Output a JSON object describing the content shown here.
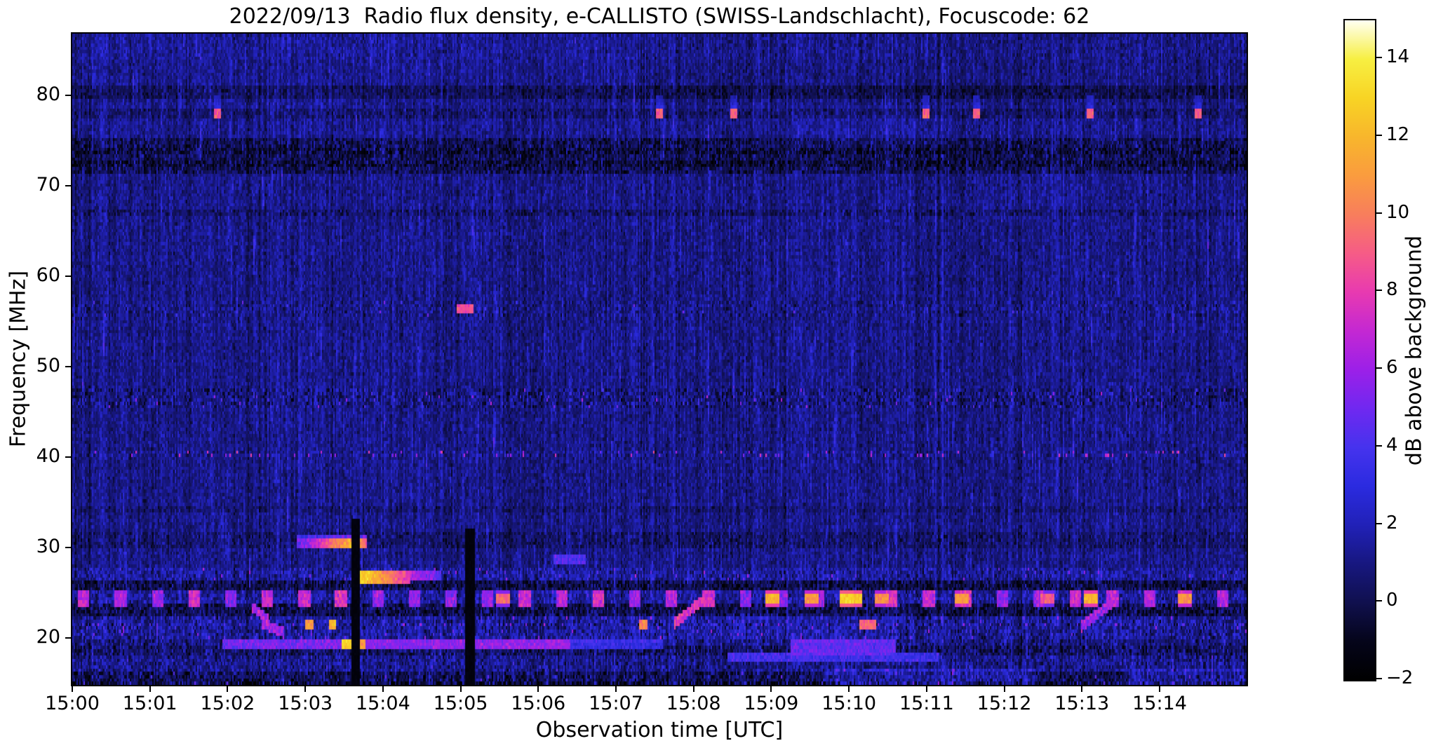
{
  "title": "2022/09/13  Radio flux density, e-CALLISTO (SWISS-Landschlacht), Focuscode: 62",
  "axes": {
    "xlabel": "Observation time [UTC]",
    "ylabel": "Frequency [MHz]",
    "x_tick_labels": [
      "15:00",
      "15:01",
      "15:02",
      "15:03",
      "15:04",
      "15:05",
      "15:06",
      "15:07",
      "15:08",
      "15:09",
      "15:10",
      "15:11",
      "15:12",
      "15:13",
      "15:14"
    ],
    "y_tick_labels": [
      "20",
      "30",
      "40",
      "50",
      "60",
      "70",
      "80"
    ],
    "y_tick_values": [
      20,
      30,
      40,
      50,
      60,
      70,
      80
    ]
  },
  "colorbar": {
    "label": "dB above background",
    "tick_labels": [
      "14",
      "12",
      "10",
      "8",
      "6",
      "4",
      "2",
      "0",
      "−2"
    ],
    "tick_values": [
      14,
      12,
      10,
      8,
      6,
      4,
      2,
      0,
      -2
    ],
    "vmin": -2,
    "vmax": 15
  },
  "chart_data": {
    "type": "heatmap",
    "subtype": "radio-spectrogram",
    "date": "2022/09/13",
    "instrument": "e-CALLISTO (SWISS-Landschlacht)",
    "focuscode": 62,
    "x_axis": {
      "label": "Observation time [UTC]",
      "start": "15:00",
      "end": "15:15",
      "minutes_span": 15.12,
      "tick_interval_min": 1
    },
    "y_axis": {
      "label": "Frequency [MHz]",
      "min": 14.8,
      "max": 86.8
    },
    "value_axis": {
      "label": "dB above background",
      "min": -2,
      "max": 15
    },
    "colormap_stops": [
      {
        "v": -2,
        "c": "#000000"
      },
      {
        "v": -1,
        "c": "#05051a"
      },
      {
        "v": 0,
        "c": "#10104e"
      },
      {
        "v": 1,
        "c": "#171780"
      },
      {
        "v": 2,
        "c": "#2121b8"
      },
      {
        "v": 3,
        "c": "#2b2be0"
      },
      {
        "v": 4,
        "c": "#4633ee"
      },
      {
        "v": 5,
        "c": "#7028f0"
      },
      {
        "v": 6,
        "c": "#9c20e8"
      },
      {
        "v": 7,
        "c": "#c428d2"
      },
      {
        "v": 8,
        "c": "#e83ab0"
      },
      {
        "v": 9,
        "c": "#f65c86"
      },
      {
        "v": 10,
        "c": "#f87e5c"
      },
      {
        "v": 11,
        "c": "#fa9c3e"
      },
      {
        "v": 12,
        "c": "#f8b62c"
      },
      {
        "v": 13,
        "c": "#f8d424"
      },
      {
        "v": 14,
        "c": "#f7ef42"
      },
      {
        "v": 15,
        "c": "#fffff2"
      }
    ],
    "background_level_db": 1.0,
    "noise_sigma_db": 0.55,
    "bands": [
      {
        "f0": 84.0,
        "f1": 86.8,
        "dv": 0.35,
        "var": 1.1
      },
      {
        "f0": 80.9,
        "f1": 84.0,
        "dv": 0.15,
        "var": 1.0
      },
      {
        "f0": 79.6,
        "f1": 80.9,
        "dv": -0.75,
        "var": 1.1
      },
      {
        "f0": 78.4,
        "f1": 79.6,
        "dv": 0.1,
        "var": 1.0
      },
      {
        "f0": 77.5,
        "f1": 78.4,
        "dv": -0.45,
        "var": 1.1
      },
      {
        "f0": 75.2,
        "f1": 77.5,
        "dv": 0.1,
        "var": 1.0
      },
      {
        "f0": 71.2,
        "f1": 75.2,
        "dv": -0.95,
        "var": 1.5
      },
      {
        "f0": 73.5,
        "f1": 74.3,
        "dv": -0.45,
        "var": 1.2
      },
      {
        "f0": 71.9,
        "f1": 72.7,
        "dv": -0.45,
        "var": 1.2
      },
      {
        "f0": 66.5,
        "f1": 67.4,
        "dv": -0.55,
        "var": 1.3
      },
      {
        "f0": 55.5,
        "f1": 57.2,
        "dv": 0.0,
        "var": 1.35,
        "p": 0.004,
        "sv0": 3.5,
        "sv1": 6
      },
      {
        "f0": 45.4,
        "f1": 47.6,
        "dv": -0.15,
        "var": 1.7,
        "p": 0.012,
        "sv0": 4,
        "sv1": 7
      },
      {
        "f0": 39.9,
        "f1": 40.7,
        "dv": 0.15,
        "var": 1.3,
        "p": 0.045,
        "sv0": 5,
        "sv1": 8.5
      },
      {
        "f0": 34.0,
        "f1": 34.6,
        "dv": -0.4,
        "var": 1.1
      },
      {
        "f0": 30.1,
        "f1": 31.6,
        "dv": -0.5,
        "var": 1.2
      },
      {
        "f0": 26.2,
        "f1": 27.9,
        "dv": 0.45,
        "var": 1.6,
        "p": 0.01,
        "sv0": 4,
        "sv1": 7
      },
      {
        "f0": 25.1,
        "f1": 26.2,
        "dv": -1.15,
        "var": 1.7
      },
      {
        "f0": 23.7,
        "f1": 25.1,
        "dv": 0.45,
        "var": 1.5
      },
      {
        "f0": 22.5,
        "f1": 23.7,
        "dv": -1.05,
        "var": 1.6
      },
      {
        "f0": 19.8,
        "f1": 22.5,
        "dv": 0.35,
        "var": 1.7,
        "p": 0.01,
        "sv0": 4,
        "sv1": 6.5
      },
      {
        "f0": 21.15,
        "f1": 21.6,
        "dv": 0.1,
        "var": 1.3,
        "p": 0.03,
        "sv0": 4,
        "sv1": 7
      },
      {
        "f0": 18.95,
        "f1": 19.8,
        "dv": -0.15,
        "var": 1.5
      },
      {
        "f0": 17.95,
        "f1": 18.95,
        "dv": -0.6,
        "var": 1.6
      },
      {
        "f0": 16.4,
        "f1": 17.95,
        "dv": 0.1,
        "var": 1.5
      },
      {
        "f0": 14.8,
        "f1": 16.4,
        "dv": -0.85,
        "var": 1.8,
        "p": 0.006,
        "sv0": 3,
        "sv1": 5
      },
      {
        "f0": 14.8,
        "f1": 15.3,
        "dv": -0.5,
        "var": 1.4
      }
    ],
    "features": [
      {
        "type": "dotline",
        "name": "rfi-78mhz-dots",
        "f": 77.9,
        "dot_df": 0.45,
        "tail_df": 1.9,
        "v": 9,
        "times": [
          1.87,
          7.56,
          8.52,
          11.0,
          11.65,
          13.1,
          14.5
        ]
      },
      {
        "type": "spot",
        "name": "burst-56mhz",
        "t": 5.06,
        "f": 56.4,
        "dt": 0.1,
        "df": 0.45,
        "v": 8.5
      },
      {
        "type": "hline",
        "name": "streak-30.5mhz",
        "t0": 2.9,
        "t1": 3.63,
        "f": 30.5,
        "df": 0.45,
        "v0": 4.5,
        "v1": 12.5
      },
      {
        "type": "hline",
        "name": "streak-30.5mhz-end",
        "t0": 3.68,
        "t1": 3.78,
        "f": 30.5,
        "df": 0.45,
        "v0": 12,
        "v1": 9
      },
      {
        "type": "hline",
        "name": "streak-31mhz-purple-top",
        "t0": 2.9,
        "t1": 3.78,
        "f": 31.0,
        "df": 0.3,
        "v0": 3.5,
        "v1": 5
      },
      {
        "type": "hline",
        "name": "streak-26.7mhz",
        "t0": 3.68,
        "t1": 4.35,
        "f": 26.7,
        "df": 0.4,
        "v0": 13.5,
        "v1": 8
      },
      {
        "type": "hline",
        "name": "streak-26.7mhz-fade",
        "t0": 4.35,
        "t1": 4.75,
        "f": 26.7,
        "df": 0.35,
        "v0": 7,
        "v1": 4.5
      },
      {
        "type": "hline",
        "name": "streak-28.8mhz",
        "t0": 6.2,
        "t1": 6.6,
        "f": 28.8,
        "df": 0.35,
        "v0": 4.5,
        "v1": 4
      },
      {
        "type": "hline",
        "name": "line-19.3mhz",
        "t0": 1.95,
        "t1": 6.4,
        "f": 19.35,
        "df": 0.28,
        "v0": 5,
        "v1": 6
      },
      {
        "type": "hline",
        "name": "line-19.3mhz-faint",
        "t0": 6.4,
        "t1": 7.6,
        "f": 19.3,
        "df": 0.25,
        "v0": 3.5,
        "v1": 3
      },
      {
        "type": "spot",
        "name": "line-19.3-yellow-1",
        "t": 3.55,
        "f": 19.35,
        "dt": 0.08,
        "df": 0.3,
        "v": 13
      },
      {
        "type": "spot",
        "name": "line-19.3-yellow-2",
        "t": 3.72,
        "f": 19.35,
        "dt": 0.05,
        "df": 0.3,
        "v": 11
      },
      {
        "type": "spot",
        "name": "dot-21.4mhz-1",
        "t": 3.05,
        "f": 21.4,
        "dt": 0.04,
        "df": 0.35,
        "v": 11
      },
      {
        "type": "spot",
        "name": "dot-21.4mhz-2",
        "t": 3.35,
        "f": 21.4,
        "dt": 0.04,
        "df": 0.35,
        "v": 12
      },
      {
        "type": "spot",
        "name": "dot-21.4mhz-3",
        "t": 7.35,
        "f": 21.3,
        "dt": 0.05,
        "df": 0.35,
        "v": 10
      },
      {
        "type": "spot",
        "name": "dot-21.4mhz-4",
        "t": 10.25,
        "f": 21.4,
        "dt": 0.1,
        "df": 0.3,
        "v": 9
      },
      {
        "type": "diag",
        "name": "drift-burst-1a",
        "t0": 2.32,
        "f0": 23.4,
        "t1": 2.52,
        "f1": 22.0,
        "v": 6.5
      },
      {
        "type": "diag",
        "name": "drift-burst-1b",
        "t0": 2.45,
        "f0": 21.6,
        "t1": 2.72,
        "f1": 20.6,
        "v": 6
      },
      {
        "type": "diag",
        "name": "drift-burst-2",
        "t0": 7.75,
        "f0": 21.6,
        "t1": 8.12,
        "f1": 24.2,
        "v": 7.5
      },
      {
        "type": "diag",
        "name": "drift-burst-3",
        "t0": 13.0,
        "f0": 21.3,
        "t1": 13.45,
        "f1": 24.3,
        "v": 6
      },
      {
        "type": "hline",
        "name": "band-19mhz-purple",
        "t0": 9.25,
        "t1": 10.6,
        "f": 19.0,
        "df": 0.6,
        "v0": 4.8,
        "v1": 4.5
      },
      {
        "type": "hline",
        "name": "band-17.8mhz-purple",
        "t0": 8.45,
        "t1": 11.15,
        "f": 17.8,
        "df": 0.4,
        "v0": 3.8,
        "v1": 3.5
      },
      {
        "type": "vgap",
        "name": "data-gap-1",
        "t": 3.655,
        "dt": 0.045,
        "f0": 14.8,
        "f1": 33.0
      },
      {
        "type": "vgap",
        "name": "data-gap-2",
        "t": 5.12,
        "dt": 0.05,
        "f0": 14.8,
        "f1": 32.0
      },
      {
        "type": "patch",
        "name": "dim-top-right",
        "t0": 7.2,
        "t1": 15.12,
        "f0": 79.2,
        "f1": 86.8,
        "dv": -0.3
      },
      {
        "type": "patch",
        "name": "bright-smudge-76mhz",
        "t0": 9.3,
        "t1": 11.3,
        "f0": 74.5,
        "f1": 77.5,
        "dv": 0.35
      },
      {
        "type": "patch",
        "name": "bright-smudge-70mhz",
        "t0": 11.6,
        "t1": 12.9,
        "f0": 66.5,
        "f1": 72.5,
        "dv": 0.3
      },
      {
        "type": "patch",
        "name": "bottom-blue-patch-1",
        "t0": 9.7,
        "t1": 12.4,
        "f0": 15.1,
        "f1": 16.3,
        "dv": 1.6
      },
      {
        "type": "patch",
        "name": "bottom-blue-patch-2",
        "t0": 13.6,
        "t1": 15.1,
        "f0": 15.1,
        "f1": 16.4,
        "dv": 1.4
      },
      {
        "type": "patch",
        "name": "active-low-patch",
        "t0": 6.6,
        "t1": 10.6,
        "f0": 19.8,
        "f1": 22.4,
        "dv": 0.3
      }
    ],
    "rfi_24mhz": {
      "f": 24.35,
      "df": 0.55,
      "period_min": 0.473,
      "base_v": 6.3,
      "strong_blobs": [
        {
          "t": 5.55,
          "v": 9.5
        },
        {
          "t": 9.02,
          "v": 12
        },
        {
          "t": 9.52,
          "v": 11
        },
        {
          "t": 9.97,
          "v": 13
        },
        {
          "t": 10.08,
          "v": 12.5
        },
        {
          "t": 10.42,
          "v": 10.5
        },
        {
          "t": 11.45,
          "v": 11
        },
        {
          "t": 12.55,
          "v": 9
        },
        {
          "t": 13.12,
          "v": 12
        },
        {
          "t": 14.32,
          "v": 11
        }
      ]
    }
  }
}
